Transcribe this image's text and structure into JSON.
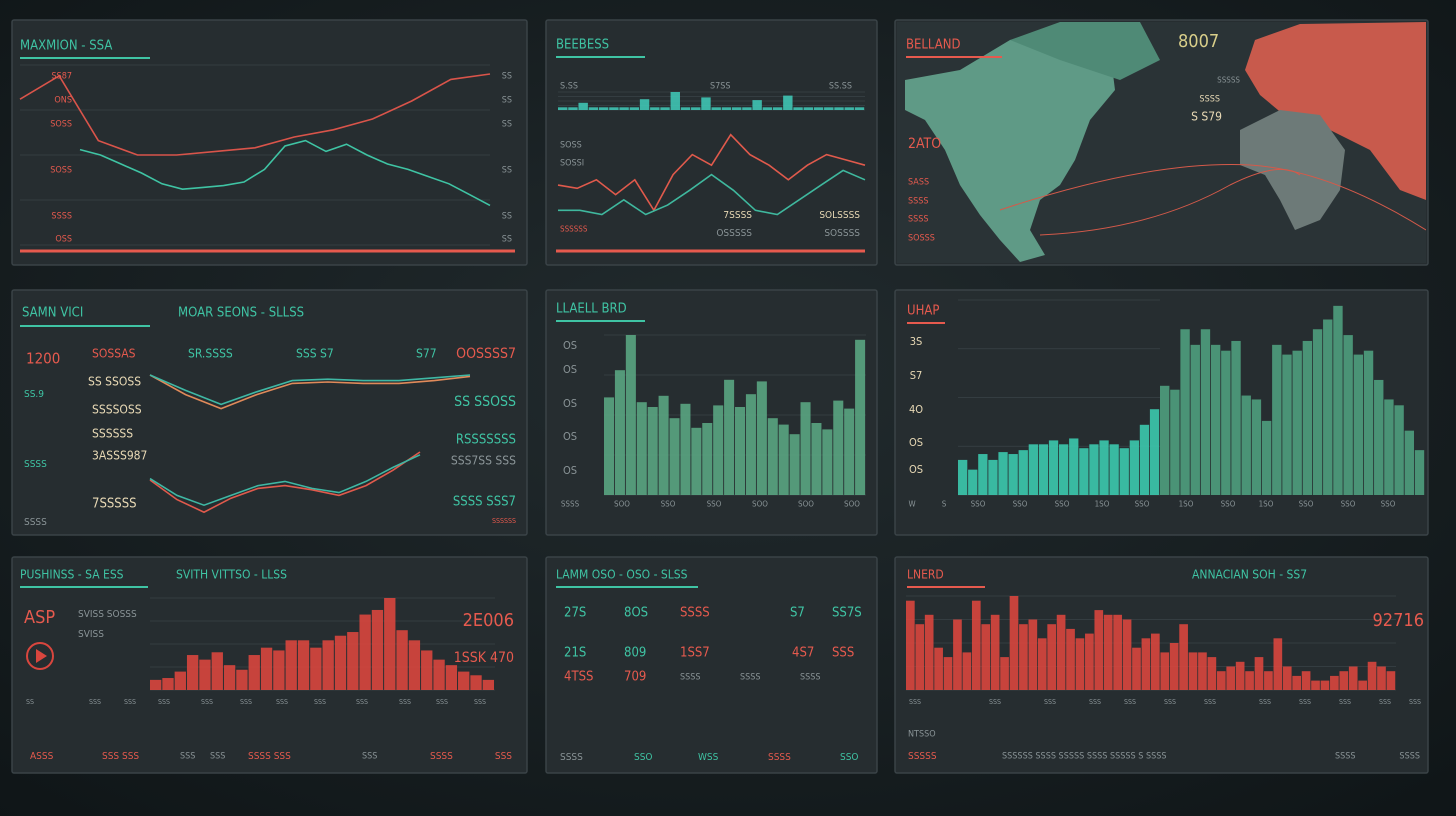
{
  "panels": [
    {
      "texts": [
        "MAXMION - SSA",
        "SS87",
        "ONS",
        "SOSS",
        "SOSS",
        "SSSS",
        "OSS",
        "SS",
        "SS",
        "SS",
        "SS",
        "SS",
        "SS"
      ],
      "charts": [
        {
          "type": "line",
          "ylim": [
            0,
            100
          ],
          "series": [
            {
              "color": "#d9544a",
              "values": [
                81,
                94,
                58,
                50,
                50,
                52,
                54,
                60,
                64,
                70,
                80,
                92,
                95
              ]
            }
          ]
        },
        {
          "type": "line",
          "ylim": [
            0,
            100
          ],
          "series": [
            {
              "color": "#3fc4a4",
              "values": [
                53,
                50,
                45,
                40,
                34,
                31,
                32,
                33,
                35,
                42,
                55,
                58,
                52,
                56,
                50,
                45,
                42,
                38,
                34,
                28,
                22
              ]
            }
          ]
        }
      ]
    },
    {
      "texts": [
        "BEEBESS",
        "S.SS",
        "S7SS",
        "SS.SS",
        "SOSS",
        "SOSSI",
        "7SSSS",
        "SOLSSSS",
        "OSSSSS",
        "SOSSSS",
        "SSSSSS"
      ],
      "charts": [
        {
          "type": "bar",
          "ylim": [
            0,
            100
          ],
          "series": [
            {
              "color": "#3fc4b4",
              "values": [
                15,
                15,
                40,
                15,
                15,
                15,
                15,
                15,
                60,
                15,
                15,
                100,
                15,
                15,
                70,
                15,
                15,
                15,
                15,
                55,
                15,
                15,
                80,
                15,
                15,
                15,
                15,
                15,
                15,
                15
              ]
            }
          ]
        },
        {
          "type": "line",
          "ylim": [
            0,
            100
          ],
          "series": [
            {
              "color": "#e05a4c",
              "values": [
                38,
                35,
                43,
                29,
                43,
                14,
                48,
                67,
                57,
                86,
                67,
                57,
                43,
                57,
                67,
                62,
                57
              ]
            },
            {
              "color": "#3fb89e",
              "values": [
                14,
                14,
                10,
                24,
                10,
                19,
                33,
                48,
                33,
                14,
                10,
                24,
                38,
                52,
                43
              ]
            }
          ]
        }
      ]
    },
    {
      "texts": [
        "BELLAND",
        "8007",
        "SSSSS",
        "SSSS",
        "S S79",
        "2ATO",
        "SASS",
        "SSSS",
        "SSSS",
        "SOSSS"
      ],
      "charts": []
    },
    {
      "texts": [
        "SAMN VICI",
        "MOAR SEONS - SLLSS",
        "1200",
        "SOSSAS",
        "SR.SSSS",
        "SSS S7",
        "S77",
        "OOSSSS7",
        "SS SSOSS",
        "SS.9",
        "SSSSOSS",
        "SSSSSS",
        "SS SSOSS",
        "RSSSSSSS",
        "SSSS",
        "3ASSS987",
        "SSS7SS SSS",
        "7SSSSS",
        "SSSS SSS7",
        "SSSS",
        "SSSSSS"
      ],
      "charts": [
        {
          "type": "line",
          "ylim": [
            0,
            100
          ],
          "series": [
            {
              "color": "#e08a5a",
              "values": [
                100,
                86,
                76,
                86,
                94,
                95,
                94,
                94,
                96,
                99
              ]
            },
            {
              "color": "#3fb8a4",
              "values": [
                100,
                89,
                79,
                88,
                96,
                97,
                96,
                96,
                98,
                100
              ]
            }
          ]
        },
        {
          "type": "line",
          "ylim": [
            0,
            100
          ],
          "series": [
            {
              "color": "#e05a4c",
              "values": [
                25,
                11,
                2,
                12,
                19,
                21,
                18,
                14,
                21,
                32,
                45
              ]
            },
            {
              "color": "#3fb8a4",
              "values": [
                26,
                14,
                7,
                14,
                21,
                24,
                19,
                16,
                24,
                34,
                43
              ]
            }
          ]
        }
      ]
    },
    {
      "texts": [
        "LLAELL BRD",
        "OS",
        "OS",
        "OS",
        "OS",
        "OS",
        "SSSS",
        "SOO",
        "SSO",
        "SSO",
        "SOO",
        "SOO",
        "SOO"
      ],
      "charts": [
        {
          "type": "bar",
          "ylim": [
            0,
            100
          ],
          "series": [
            {
              "color": "#5aa582",
              "values": [
                61,
                78,
                100,
                58,
                55,
                62,
                48,
                57,
                42,
                45,
                56,
                72,
                55,
                63,
                71,
                48,
                44,
                38,
                58,
                45,
                41,
                59,
                54,
                97
              ]
            }
          ]
        }
      ]
    },
    {
      "texts": [
        "UHAP",
        "3S",
        "S7",
        "4O",
        "OS",
        "OS",
        "W",
        "S",
        "SSO",
        "SSO",
        "SSO",
        "1SO",
        "SSO",
        "1SO",
        "SSO",
        "1SO",
        "SSO",
        "SSO",
        "SSO"
      ],
      "charts": [
        {
          "type": "bar",
          "ylim": [
            0,
            100
          ],
          "series": [
            {
              "color": "#3cc9ae",
              "values": [
                18,
                13,
                21,
                18,
                22,
                21,
                23,
                26,
                26,
                28,
                26,
                29,
                24,
                26,
                28,
                26,
                24,
                28,
                36,
                44
              ]
            }
          ]
        },
        {
          "type": "bar",
          "ylim": [
            0,
            100
          ],
          "series": [
            {
              "color": "#4f9e7e",
              "values": [
                56,
                54,
                85,
                77,
                85,
                77,
                74,
                79,
                51,
                49,
                38,
                77,
                72,
                74,
                79,
                85,
                90,
                97,
                82,
                72,
                74,
                59,
                49,
                46,
                33,
                23
              ]
            }
          ]
        }
      ]
    },
    {
      "texts": [
        "PUSHINSS - SA ESS",
        "SVITH VITTSO - LLSS",
        "ASP",
        "SVISS SOSSS",
        "SVISS",
        "2E006",
        "1SSK 470",
        "SS",
        "SSS",
        "SSS",
        "SSS",
        "SSS",
        "SSS",
        "SSS",
        "SSS",
        "SSS",
        "SSS",
        "SSS",
        "SSS",
        "ASSS",
        "SSS SSS",
        "SSS",
        "SSS",
        "SSSS SSS",
        "SSS",
        "SSSS",
        "SSS"
      ],
      "charts": [
        {
          "type": "bar",
          "ylim": [
            0,
            100
          ],
          "series": [
            {
              "color": "#d9463e",
              "values": [
                11,
                13,
                20,
                38,
                33,
                41,
                27,
                22,
                38,
                46,
                43,
                54,
                54,
                46,
                54,
                59,
                63,
                82,
                87,
                100,
                65,
                54,
                43,
                33,
                27,
                20,
                16,
                11
              ]
            }
          ]
        }
      ]
    },
    {
      "texts": [
        "LAMM OSO - OSO - SLSS",
        "27S",
        "8OS",
        "SSSS",
        "S7",
        "SS7S",
        "21S",
        "809",
        "1SS7",
        "4S7",
        "SSS",
        "4TSS",
        "709",
        "SSSS",
        "SSSS",
        "SSSS",
        "SSSS",
        "SSO",
        "WSS",
        "SSSS",
        "SSO"
      ],
      "charts": []
    },
    {
      "texts": [
        "LNERD",
        "ANNACIAN SOH - SS7",
        "92716",
        "SSS",
        "SSS",
        "SSS",
        "SSS",
        "SSS",
        "SSS",
        "SSS",
        "SSS",
        "SSS",
        "SSS",
        "SSS",
        "SSS",
        "NTSSO",
        "SSSSS",
        "SSSSSS SSSS SSSSS SSSS SSSSS S SSSS",
        "SSSS",
        "SSSS"
      ],
      "charts": [
        {
          "type": "bar",
          "ylim": [
            0,
            100
          ],
          "series": [
            {
              "color": "#d9463e",
              "values": [
                95,
                70,
                80,
                45,
                35,
                75,
                40,
                95,
                70,
                80,
                35,
                100,
                70,
                75,
                55,
                70,
                80,
                65,
                55,
                60,
                85,
                80,
                80,
                75,
                45,
                55,
                60,
                40,
                50,
                70,
                40,
                40,
                35,
                20,
                25,
                30,
                20,
                35,
                20,
                55,
                25,
                15,
                20,
                10,
                10,
                15,
                20,
                25,
                10,
                30,
                25,
                20
              ]
            }
          ]
        }
      ]
    }
  ]
}
